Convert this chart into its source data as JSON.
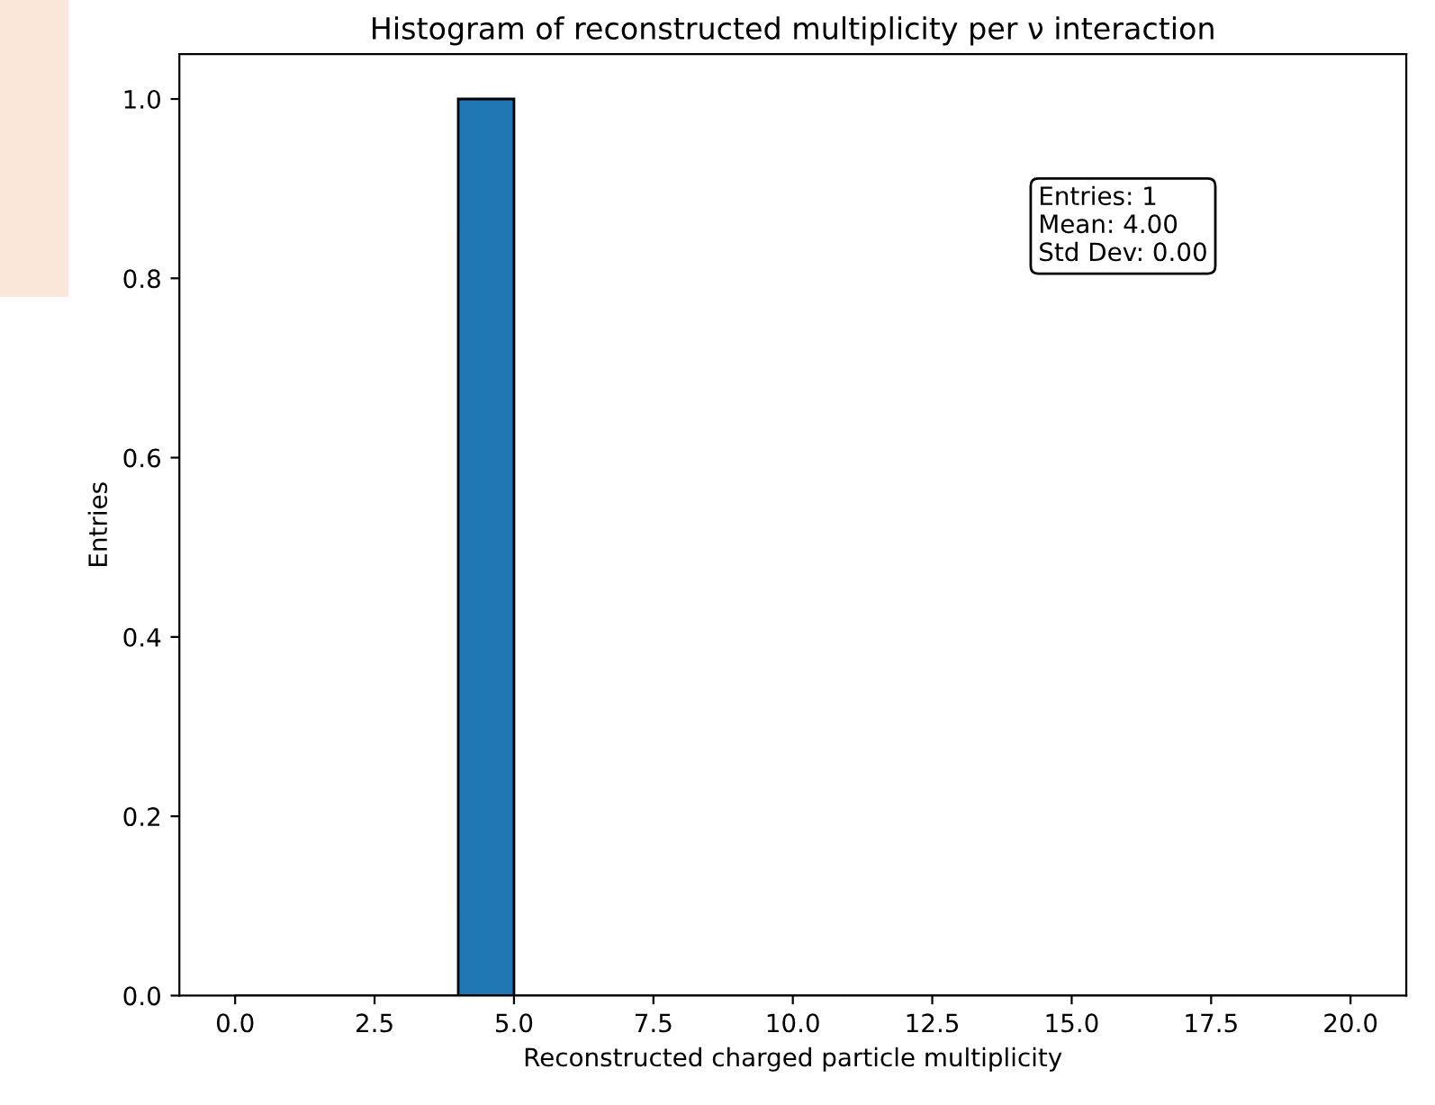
{
  "chart_data": {
    "type": "histogram",
    "title": "Histogram of reconstructed multiplicity per ν interaction",
    "xlabel": "Reconstructed charged particle multiplicity",
    "ylabel": "Entries",
    "bins": [
      0,
      1,
      2,
      3,
      4,
      5,
      6,
      7,
      8,
      9,
      10,
      11,
      12,
      13,
      14,
      15,
      16,
      17,
      18,
      19,
      20
    ],
    "values": [
      0,
      0,
      0,
      0,
      1,
      0,
      0,
      0,
      0,
      0,
      0,
      0,
      0,
      0,
      0,
      0,
      0,
      0,
      0,
      0
    ],
    "color": "#1f77b4",
    "xlim": [
      -1,
      21
    ],
    "ylim": [
      0,
      1.05
    ],
    "xticks": [
      {
        "value": 0,
        "label": "0.0"
      },
      {
        "value": 2.5,
        "label": "2.5"
      },
      {
        "value": 5,
        "label": "5.0"
      },
      {
        "value": 7.5,
        "label": "7.5"
      },
      {
        "value": 10,
        "label": "10.0"
      },
      {
        "value": 12.5,
        "label": "12.5"
      },
      {
        "value": 15,
        "label": "15.0"
      },
      {
        "value": 17.5,
        "label": "17.5"
      },
      {
        "value": 20,
        "label": "20.0"
      }
    ],
    "yticks": [
      {
        "value": 0,
        "label": "0.0"
      },
      {
        "value": 0.2,
        "label": "0.2"
      },
      {
        "value": 0.4,
        "label": "0.4"
      },
      {
        "value": 0.6,
        "label": "0.6"
      },
      {
        "value": 0.8,
        "label": "0.8"
      },
      {
        "value": 1,
        "label": "1.0"
      }
    ],
    "annotations": [
      "Entries: 1\nMean: 4.00\nStd Dev: 0.00"
    ]
  }
}
